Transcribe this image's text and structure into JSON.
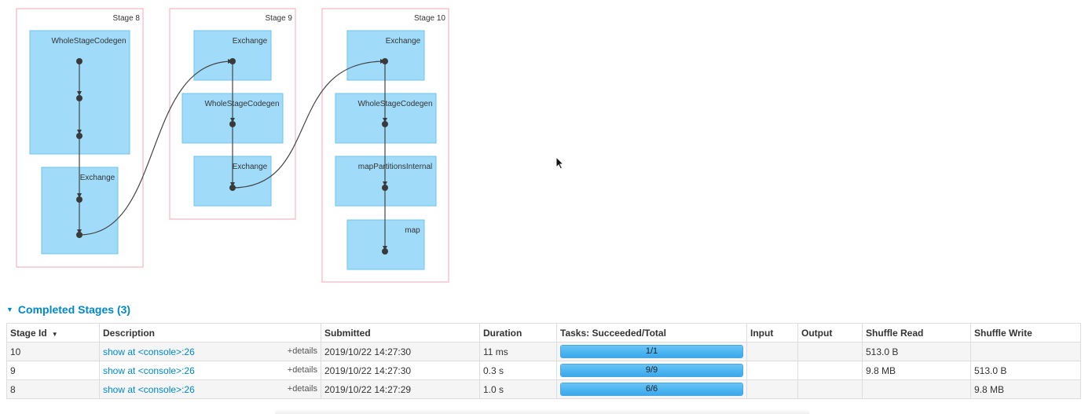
{
  "dag": {
    "stages": [
      {
        "label": "Stage 8",
        "clusters": [
          "WholeStageCodegen",
          "Exchange"
        ]
      },
      {
        "label": "Stage 9",
        "clusters": [
          "Exchange",
          "WholeStageCodegen",
          "Exchange"
        ]
      },
      {
        "label": "Stage 10",
        "clusters": [
          "Exchange",
          "WholeStageCodegen",
          "mapPartitionsInternal",
          "map"
        ]
      }
    ]
  },
  "completed": {
    "title": "Completed Stages (3)",
    "columns": [
      "Stage Id",
      "Description",
      "Submitted",
      "Duration",
      "Tasks: Succeeded/Total",
      "Input",
      "Output",
      "Shuffle Read",
      "Shuffle Write"
    ],
    "details_label": "+details",
    "rows": [
      {
        "id": "10",
        "description": "show at <console>:26",
        "submitted": "2019/10/22 14:27:30",
        "duration": "11 ms",
        "tasks": "1/1",
        "progress": 1.0,
        "input": "",
        "output": "",
        "shuffle_read": "513.0 B",
        "shuffle_write": ""
      },
      {
        "id": "9",
        "description": "show at <console>:26",
        "submitted": "2019/10/22 14:27:30",
        "duration": "0.3 s",
        "tasks": "9/9",
        "progress": 1.0,
        "input": "",
        "output": "",
        "shuffle_read": "9.8 MB",
        "shuffle_write": "513.0 B"
      },
      {
        "id": "8",
        "description": "show at <console>:26",
        "submitted": "2019/10/22 14:27:29",
        "duration": "1.0 s",
        "tasks": "6/6",
        "progress": 1.0,
        "input": "",
        "output": "",
        "shuffle_read": "",
        "shuffle_write": "9.8 MB"
      }
    ]
  }
}
